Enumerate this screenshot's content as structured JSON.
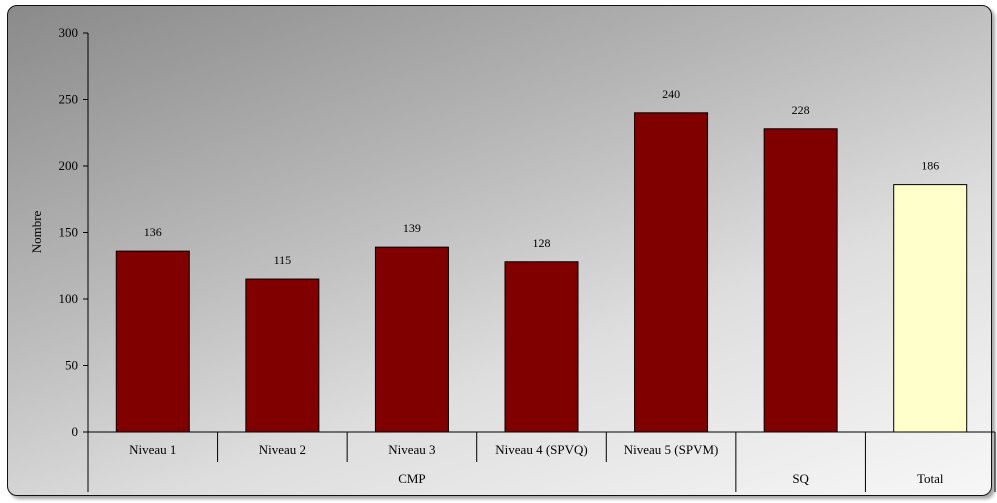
{
  "chart_data": {
    "type": "bar",
    "title": "",
    "xlabel": "",
    "ylabel": "Nombre",
    "ylim": [
      0,
      300
    ],
    "yticks": [
      0,
      50,
      100,
      150,
      200,
      250,
      300
    ],
    "categories": [
      "Niveau 1",
      "Niveau 2",
      "Niveau 3",
      "Niveau 4 (SPVQ)",
      "Niveau 5 (SPVM)",
      "",
      ""
    ],
    "groups": [
      {
        "label": "CMP",
        "span": 5
      },
      {
        "label": "SQ",
        "span": 1
      },
      {
        "label": "Total",
        "span": 1
      }
    ],
    "values": [
      136,
      115,
      139,
      128,
      240,
      228,
      186
    ],
    "data_labels": [
      "136",
      "115",
      "139",
      "128",
      "240",
      "228",
      "186"
    ],
    "bar_colors": [
      "#800000",
      "#800000",
      "#800000",
      "#800000",
      "#800000",
      "#800000",
      "#ffffcc"
    ],
    "grid": false,
    "legend": "none"
  }
}
